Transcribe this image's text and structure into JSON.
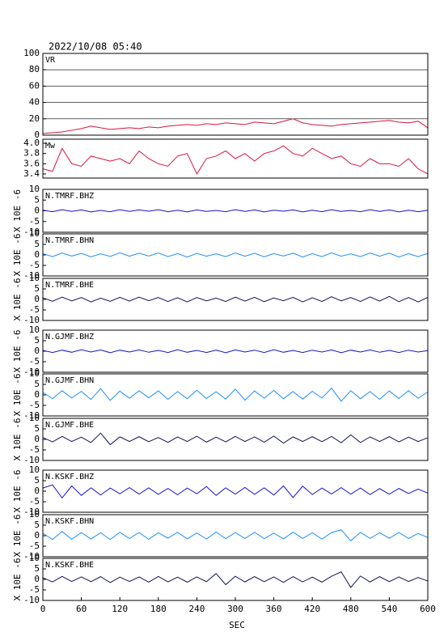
{
  "chart_data": [
    {
      "type": "line",
      "title": "2022/10/08 05:40",
      "label": "VR",
      "color": "#dc143c",
      "grid": true,
      "ylim": [
        0,
        100
      ],
      "yticks": [
        0,
        20,
        40,
        60,
        80,
        100
      ],
      "xlim": [
        0,
        600
      ],
      "x": [
        0,
        15,
        30,
        45,
        60,
        75,
        90,
        105,
        120,
        135,
        150,
        165,
        180,
        195,
        210,
        225,
        240,
        255,
        270,
        285,
        300,
        315,
        330,
        345,
        360,
        375,
        390,
        405,
        420,
        435,
        450,
        465,
        480,
        495,
        510,
        525,
        540,
        555,
        570,
        585,
        600
      ],
      "values": [
        2,
        3,
        4,
        6,
        8,
        11,
        9,
        7,
        8,
        9,
        8,
        10,
        9,
        11,
        12,
        13,
        12,
        14,
        13,
        15,
        14,
        13,
        16,
        15,
        14,
        17,
        20,
        15,
        13,
        12,
        11,
        13,
        14,
        15,
        16,
        17,
        18,
        16,
        15,
        17,
        9
      ]
    },
    {
      "type": "line",
      "label": "Mw",
      "color": "#dc143c",
      "ylim": [
        3.32,
        4.08
      ],
      "yticks": [
        {
          "value": 4,
          "label": "4.0"
        },
        3.8,
        3.6,
        3.4
      ],
      "xlim": [
        0,
        600
      ],
      "x": [
        0,
        15,
        30,
        45,
        60,
        75,
        90,
        105,
        120,
        135,
        150,
        165,
        180,
        195,
        210,
        225,
        240,
        255,
        270,
        285,
        300,
        315,
        330,
        345,
        360,
        375,
        390,
        405,
        420,
        435,
        450,
        465,
        480,
        495,
        510,
        525,
        540,
        555,
        570,
        585,
        600
      ],
      "values": [
        3.5,
        3.45,
        3.9,
        3.6,
        3.55,
        3.75,
        3.7,
        3.65,
        3.7,
        3.6,
        3.85,
        3.7,
        3.6,
        3.55,
        3.75,
        3.8,
        3.4,
        3.7,
        3.75,
        3.85,
        3.7,
        3.8,
        3.65,
        3.8,
        3.85,
        3.95,
        3.8,
        3.75,
        3.9,
        3.8,
        3.7,
        3.75,
        3.6,
        3.55,
        3.7,
        3.6,
        3.6,
        3.55,
        3.7,
        3.5,
        3.4
      ]
    },
    {
      "type": "line",
      "label": "N.TMRF.BHZ",
      "ylabel": "X 10E -6",
      "color": "#1414d2",
      "ylim": [
        -10,
        10
      ],
      "yticks": [
        10,
        5,
        0,
        -5,
        -10
      ],
      "xlim": [
        0,
        600
      ],
      "x": [
        0,
        15,
        30,
        45,
        60,
        75,
        90,
        105,
        120,
        135,
        150,
        165,
        180,
        195,
        210,
        225,
        240,
        255,
        270,
        285,
        300,
        315,
        330,
        345,
        360,
        375,
        390,
        405,
        420,
        435,
        450,
        465,
        480,
        495,
        510,
        525,
        540,
        555,
        570,
        585,
        600
      ],
      "values": [
        0.3,
        -0.4,
        0.5,
        -0.3,
        0.4,
        -0.5,
        0.2,
        -0.4,
        0.5,
        -0.3,
        0.4,
        -0.2,
        0.5,
        -0.4,
        0.3,
        -0.5,
        0.4,
        -0.3,
        0.2,
        -0.4,
        0.5,
        -0.3,
        0.4,
        -0.5,
        0.3,
        -0.2,
        0.4,
        -0.5,
        0.3,
        -0.4,
        0.5,
        -0.3,
        0.2,
        -0.4,
        0.5,
        -0.3,
        0.4,
        -0.5,
        0.3,
        -0.4,
        0.3
      ]
    },
    {
      "type": "line",
      "label": "N.TMRF.BHN",
      "ylabel": "X 10E -6",
      "color": "#1e8fff",
      "ylim": [
        -10,
        10
      ],
      "yticks": [
        10,
        5,
        0,
        -5,
        -10
      ],
      "xlim": [
        0,
        600
      ],
      "x": [
        0,
        15,
        30,
        45,
        60,
        75,
        90,
        105,
        120,
        135,
        150,
        165,
        180,
        195,
        210,
        225,
        240,
        255,
        270,
        285,
        300,
        315,
        330,
        345,
        360,
        375,
        390,
        405,
        420,
        435,
        450,
        465,
        480,
        495,
        510,
        525,
        540,
        555,
        570,
        585,
        600
      ],
      "values": [
        0.6,
        -0.8,
        0.9,
        -0.5,
        0.7,
        -0.9,
        0.5,
        -0.7,
        1,
        -0.6,
        0.8,
        -0.5,
        0.9,
        -0.8,
        0.6,
        -1,
        0.7,
        -0.6,
        0.5,
        -0.8,
        0.9,
        -0.6,
        0.8,
        -0.9,
        0.6,
        -0.5,
        0.8,
        -1,
        0.6,
        -0.8,
        1,
        -0.6,
        0.5,
        -0.8,
        0.9,
        -0.6,
        0.8,
        -1,
        0.6,
        -0.8,
        0.7
      ]
    },
    {
      "type": "line",
      "label": "N.TMRF.BHE",
      "ylabel": "X 10E -6",
      "color": "#14145a",
      "ylim": [
        -10,
        10
      ],
      "yticks": [
        10,
        5,
        0,
        -5,
        -10
      ],
      "xlim": [
        0,
        600
      ],
      "x": [
        0,
        15,
        30,
        45,
        60,
        75,
        90,
        105,
        120,
        135,
        150,
        165,
        180,
        195,
        210,
        225,
        240,
        255,
        270,
        285,
        300,
        315,
        330,
        345,
        360,
        375,
        390,
        405,
        420,
        435,
        450,
        465,
        480,
        495,
        510,
        525,
        540,
        555,
        570,
        585,
        600
      ],
      "values": [
        0.8,
        -0.9,
        1.1,
        -0.7,
        0.9,
        -1.2,
        0.6,
        -0.9,
        1,
        -0.8,
        1.1,
        -0.6,
        0.9,
        -1,
        0.8,
        -1.2,
        0.9,
        -0.7,
        0.6,
        -1,
        1.1,
        -0.8,
        1,
        -1.1,
        0.7,
        -0.6,
        1,
        -1.2,
        0.8,
        -1,
        1.3,
        -0.7,
        0.9,
        -1,
        1.2,
        -0.8,
        1.4,
        -1.1,
        0.9,
        -1.2,
        1
      ]
    },
    {
      "type": "line",
      "label": "N.GJMF.BHZ",
      "ylabel": "X 10E -6",
      "color": "#1414d2",
      "ylim": [
        -10,
        10
      ],
      "yticks": [
        10,
        5,
        0,
        -5,
        -10
      ],
      "xlim": [
        0,
        600
      ],
      "x": [
        0,
        15,
        30,
        45,
        60,
        75,
        90,
        105,
        120,
        135,
        150,
        165,
        180,
        195,
        210,
        225,
        240,
        255,
        270,
        285,
        300,
        315,
        330,
        345,
        360,
        375,
        390,
        405,
        420,
        435,
        450,
        465,
        480,
        495,
        510,
        525,
        540,
        555,
        570,
        585,
        600
      ],
      "values": [
        0.4,
        -0.6,
        0.5,
        -0.5,
        0.7,
        -0.4,
        0.6,
        -0.7,
        0.5,
        -0.4,
        0.6,
        -0.5,
        0.4,
        -0.6,
        0.7,
        -0.5,
        0.4,
        -0.6,
        0.5,
        -0.7,
        0.6,
        -0.4,
        0.5,
        -0.6,
        0.7,
        -0.5,
        0.4,
        -0.6,
        0.5,
        -0.4,
        0.6,
        -0.7,
        0.5,
        -0.4,
        0.6,
        -0.5,
        0.4,
        -0.6,
        0.5,
        -0.4,
        0.3
      ]
    },
    {
      "type": "line",
      "label": "N.GJMF.BHN",
      "ylabel": "X 10E -6",
      "color": "#1e8fff",
      "ylim": [
        -10,
        10
      ],
      "yticks": [
        10,
        5,
        0,
        -5,
        -10
      ],
      "xlim": [
        0,
        600
      ],
      "x": [
        0,
        15,
        30,
        45,
        60,
        75,
        90,
        105,
        120,
        135,
        150,
        165,
        180,
        195,
        210,
        225,
        240,
        255,
        270,
        285,
        300,
        315,
        330,
        345,
        360,
        375,
        390,
        405,
        420,
        435,
        450,
        465,
        480,
        495,
        510,
        525,
        540,
        555,
        570,
        585,
        600
      ],
      "values": [
        1.2,
        -1.8,
        2,
        -1.5,
        1.7,
        -2.2,
        3,
        -2.6,
        1.8,
        -1.6,
        2,
        -1.4,
        1.9,
        -2.1,
        1.6,
        -1.8,
        2.2,
        -1.7,
        1.5,
        -2,
        2.8,
        -2.5,
        1.9,
        -1.6,
        2.1,
        -1.8,
        1.6,
        -2,
        1.7,
        -1.5,
        3.2,
        -3,
        2,
        -1.8,
        1.6,
        -2.1,
        1.9,
        -1.7,
        2,
        -1.6,
        1.4
      ]
    },
    {
      "type": "line",
      "label": "N.GJMF.BHE",
      "ylabel": "X 10E -6",
      "color": "#14145a",
      "ylim": [
        -10,
        10
      ],
      "yticks": [
        10,
        5,
        0,
        -5,
        -10
      ],
      "xlim": [
        0,
        600
      ],
      "x": [
        0,
        15,
        30,
        45,
        60,
        75,
        90,
        105,
        120,
        135,
        150,
        165,
        180,
        195,
        210,
        225,
        240,
        255,
        270,
        285,
        300,
        315,
        330,
        345,
        360,
        375,
        390,
        405,
        420,
        435,
        450,
        465,
        480,
        495,
        510,
        525,
        540,
        555,
        570,
        585,
        600
      ],
      "values": [
        0.9,
        -1.2,
        1.4,
        -1,
        1.1,
        -1.5,
        3,
        -2.5,
        1.2,
        -1,
        1.3,
        -1.1,
        0.9,
        -1.4,
        1.2,
        -1,
        1.5,
        -1.3,
        1.1,
        -1.2,
        1.4,
        -1,
        1.2,
        -1.3,
        1.6,
        -1.8,
        1.2,
        -1,
        1.3,
        -1.1,
        1.4,
        -1.6,
        2.2,
        -1.5,
        1.2,
        -1,
        1.3,
        -1.2,
        1.1,
        -1,
        0.8
      ]
    },
    {
      "type": "line",
      "label": "N.KSKF.BHZ",
      "ylabel": "X 10E -6",
      "color": "#1414d2",
      "ylim": [
        -10,
        10
      ],
      "yticks": [
        10,
        5,
        0,
        -5,
        -10
      ],
      "xlim": [
        0,
        600
      ],
      "x": [
        0,
        15,
        30,
        45,
        60,
        75,
        90,
        105,
        120,
        135,
        150,
        165,
        180,
        195,
        210,
        225,
        240,
        255,
        270,
        285,
        300,
        315,
        330,
        345,
        360,
        375,
        390,
        405,
        420,
        435,
        450,
        465,
        480,
        495,
        510,
        525,
        540,
        555,
        570,
        585,
        600
      ],
      "values": [
        1.5,
        3,
        -3.2,
        2.5,
        -2,
        1.6,
        -1.8,
        1.5,
        -1.2,
        1.7,
        -1.4,
        1.6,
        -1.5,
        1.3,
        -1.7,
        1.5,
        -1.2,
        2.2,
        -2,
        1.6,
        -1.4,
        1.8,
        -1.5,
        1.6,
        -1.8,
        2.5,
        -3,
        2.4,
        -1.6,
        1.5,
        -1.3,
        1.7,
        -1.4,
        1.5,
        -1.6,
        1.2,
        -1.4,
        1.3,
        -1.1,
        1,
        -0.9
      ]
    },
    {
      "type": "line",
      "label": "N.KSKF.BHN",
      "ylabel": "X 10E -6",
      "color": "#1e8fff",
      "ylim": [
        -10,
        10
      ],
      "yticks": [
        10,
        5,
        0,
        -5,
        -10
      ],
      "xlim": [
        0,
        600
      ],
      "x": [
        0,
        15,
        30,
        45,
        60,
        75,
        90,
        105,
        120,
        135,
        150,
        165,
        180,
        195,
        210,
        225,
        240,
        255,
        270,
        285,
        300,
        315,
        330,
        345,
        360,
        375,
        390,
        405,
        420,
        435,
        450,
        465,
        480,
        495,
        510,
        525,
        540,
        555,
        570,
        585,
        600
      ],
      "values": [
        1.2,
        -1.8,
        2,
        -1.7,
        1.5,
        -1.6,
        1.4,
        -1.8,
        1.6,
        -1.3,
        1.5,
        -1.7,
        1.4,
        -1.2,
        1.6,
        -1.5,
        1.3,
        -1.6,
        1.8,
        -1.4,
        1.5,
        -1.3,
        1.6,
        -1.4,
        1.2,
        -1.5,
        1.7,
        -1.3,
        1.4,
        -1.6,
        1.5,
        2.8,
        -2.4,
        1.6,
        -1.3,
        1.4,
        -1.2,
        1.5,
        -1.3,
        1.1,
        -0.9
      ]
    },
    {
      "type": "line",
      "label": "N.KSKF.BHE",
      "ylabel": "X 10E -6",
      "xlabel": "SEC",
      "color": "#14145a",
      "ylim": [
        -10,
        10
      ],
      "yticks": [
        10,
        5,
        0,
        -5,
        -10
      ],
      "xlim": [
        0,
        600
      ],
      "xticks": [
        0,
        60,
        120,
        180,
        240,
        300,
        360,
        420,
        480,
        540,
        600
      ],
      "x": [
        0,
        15,
        30,
        45,
        60,
        75,
        90,
        105,
        120,
        135,
        150,
        165,
        180,
        195,
        210,
        225,
        240,
        255,
        270,
        285,
        300,
        315,
        330,
        345,
        360,
        375,
        390,
        405,
        420,
        435,
        450,
        465,
        480,
        495,
        510,
        525,
        540,
        555,
        570,
        585,
        600
      ],
      "values": [
        0.8,
        -1.2,
        1.4,
        -1,
        1.2,
        -1.1,
        1.3,
        -1.5,
        1.1,
        -1,
        1.2,
        -1.3,
        1.4,
        -1.2,
        1.1,
        -1.3,
        1.2,
        -1.1,
        2.8,
        -2.5,
        1.5,
        -1.2,
        1.3,
        -1.1,
        1.2,
        -1.4,
        1.3,
        -1.2,
        1.1,
        -1.3,
        1.5,
        3.6,
        -3.8,
        1.6,
        -1.2,
        1.3,
        -1.1,
        1.2,
        -1,
        0.9,
        -0.8
      ]
    }
  ]
}
